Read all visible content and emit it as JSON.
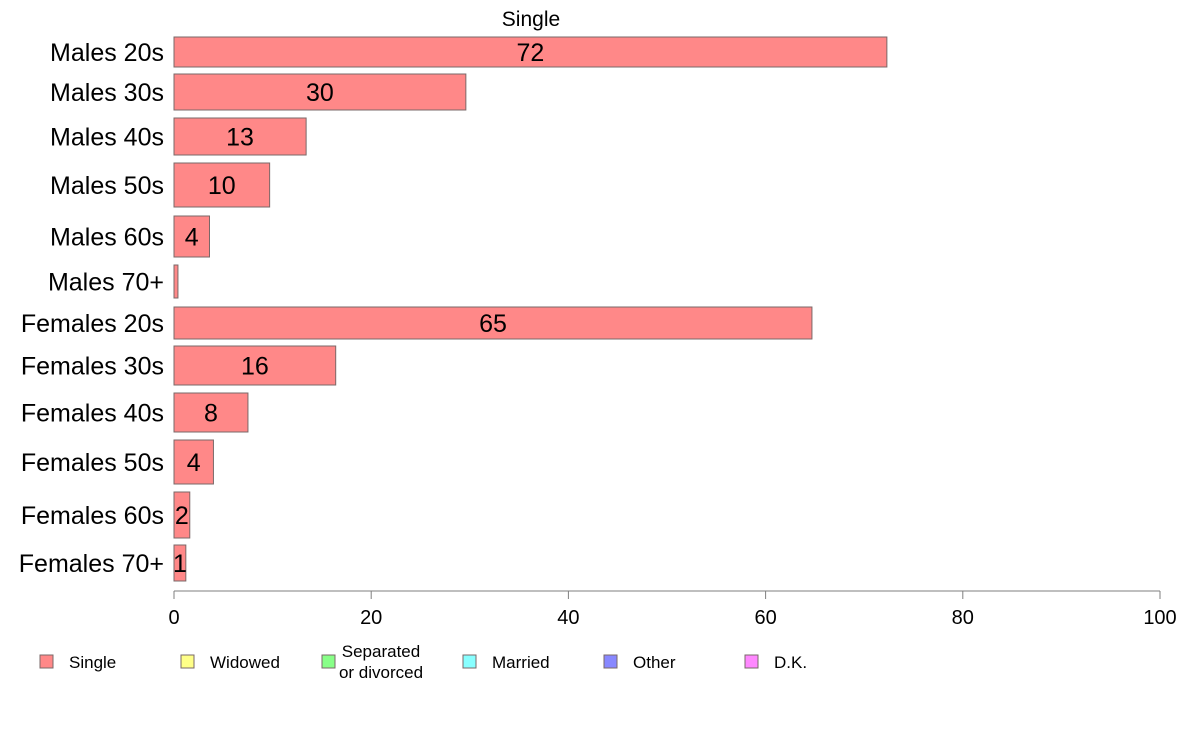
{
  "chart_data": {
    "type": "bar",
    "orientation": "horizontal",
    "title": "Single",
    "categories": [
      "Males 20s",
      "Males 30s",
      "Males 40s",
      "Males 50s",
      "Males 60s",
      "Males 70+",
      "Females 20s",
      "Females 30s",
      "Females 40s",
      "Females 50s",
      "Females 60s",
      "Females 70+"
    ],
    "series": [
      {
        "name": "Single",
        "color": "#ff8888",
        "values": [
          72.3,
          29.6,
          13.4,
          9.7,
          3.6,
          0.4,
          64.7,
          16.4,
          7.5,
          4.0,
          1.6,
          1.2
        ],
        "labels": [
          "72",
          "30",
          "13",
          "10",
          "4",
          "",
          "65",
          "16",
          "8",
          "4",
          "2",
          "1"
        ]
      }
    ],
    "xlim": [
      0,
      100
    ],
    "xticks": [
      "0",
      "20",
      "40",
      "60",
      "80",
      "100"
    ],
    "grid": false,
    "legend_position": "bottom",
    "legend": [
      {
        "label": "Single",
        "color": "#ff8888"
      },
      {
        "label": "Widowed",
        "color": "#ffff88"
      },
      {
        "label": "Separated or divorced",
        "lines": [
          "Separated",
          "or divorced"
        ],
        "color": "#88ff88"
      },
      {
        "label": "Married",
        "color": "#88ffff"
      },
      {
        "label": "Other",
        "color": "#8888ff"
      },
      {
        "label": "D.K.",
        "color": "#ff88ff"
      }
    ]
  }
}
